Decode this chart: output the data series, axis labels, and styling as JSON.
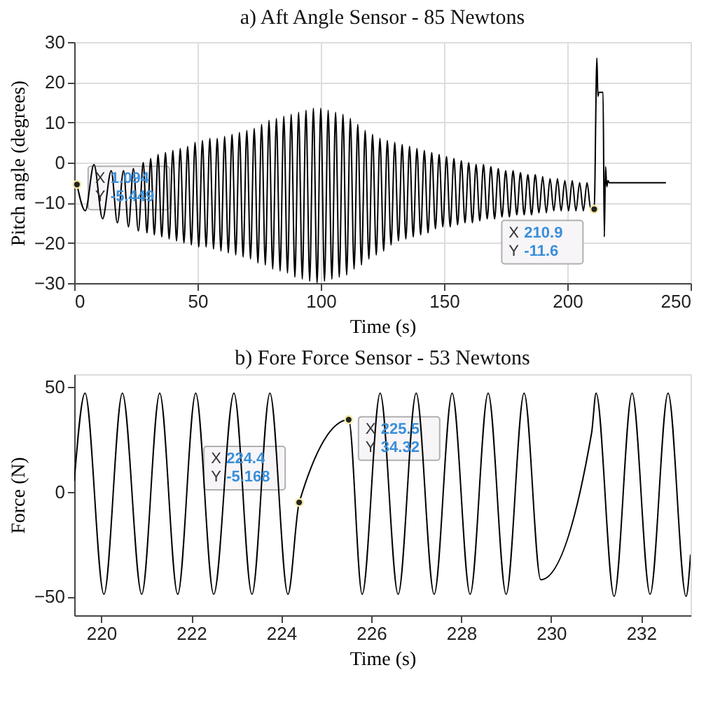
{
  "chart_data": [
    {
      "type": "line",
      "title": "a)  Aft Angle Sensor - 85 Newtons",
      "xlabel": "Time (s)",
      "ylabel": "Pitch angle (degrees)",
      "xlim": [
        0,
        250
      ],
      "ylim": [
        -30,
        30
      ],
      "xticks": [
        0,
        50,
        100,
        150,
        200,
        250
      ],
      "yticks": [
        -30,
        -20,
        -10,
        0,
        10,
        20,
        30
      ],
      "grid": true,
      "series": [
        {
          "color": "#000000",
          "x": [
            1.094,
            4.5,
            8,
            11.5,
            15,
            17.5,
            20,
            22,
            24,
            26,
            28,
            29.5,
            31,
            32.5,
            34,
            35.5,
            37,
            38.5,
            40,
            41.5,
            43,
            44.5,
            46,
            47.5,
            49,
            50.5,
            52,
            53.5,
            55,
            56.5,
            58,
            59.5,
            61,
            62.5,
            64,
            65.5,
            67,
            68.5,
            70,
            71.5,
            73,
            74.5,
            76,
            77.5,
            79,
            80.5,
            82,
            83.5,
            85,
            86.5,
            88,
            89.5,
            91,
            92.5,
            94,
            95.5,
            97,
            98.5,
            100,
            101.5,
            103,
            104.5,
            106,
            107.5,
            109,
            110.5,
            112,
            113.5,
            115,
            116.5,
            118,
            119.5,
            121,
            122.5,
            124,
            125.5,
            127,
            128.5,
            130,
            131.5,
            133,
            134.5,
            136,
            137.5,
            139,
            140.5,
            142,
            143.5,
            145,
            146.5,
            148,
            149.5,
            151,
            152.5,
            154,
            155.5,
            157,
            158.5,
            160,
            161.5,
            163,
            164.5,
            166,
            167.5,
            169,
            170.5,
            172,
            173.5,
            175,
            176.5,
            178,
            179.5,
            181,
            182.5,
            184,
            185.5,
            187,
            188.5,
            190,
            191.5,
            193,
            194.5,
            196,
            197.5,
            199,
            200.5,
            202,
            203.5,
            205,
            206.5,
            208,
            209.5,
            210.9,
            212,
            212.4,
            212.8,
            214.5,
            215,
            215.5,
            216,
            216.5,
            217,
            230,
            240
          ],
          "values": [
            -5.4,
            -12,
            -0.5,
            -14,
            -2,
            -15,
            -2,
            -16,
            -1.5,
            -17,
            0,
            -17.5,
            1,
            -18,
            2,
            -18.5,
            2.5,
            -19,
            3,
            -19.5,
            3.5,
            -20,
            4,
            -20.5,
            5,
            -21,
            5.5,
            -21,
            6,
            -21.5,
            6,
            -22,
            6.5,
            -22.5,
            7,
            -23,
            7.5,
            -23.5,
            8,
            -24,
            8.5,
            -25,
            9.5,
            -25.5,
            10.5,
            -26.5,
            11,
            -27,
            11.5,
            -27.5,
            12,
            -28.5,
            12.5,
            -29,
            13,
            -29.5,
            13.5,
            -30,
            13.5,
            -29.5,
            13,
            -29,
            12.5,
            -28.5,
            12,
            -28,
            11,
            -26.5,
            9.5,
            -25.5,
            8,
            -24,
            7,
            -23,
            6,
            -22,
            5.5,
            -20.5,
            5,
            -19.5,
            4.5,
            -19,
            4,
            -18.5,
            3.5,
            -18,
            3,
            -17.5,
            2.5,
            -16.5,
            2,
            -16,
            1.5,
            -16,
            1,
            -15.5,
            0.5,
            -15,
            0,
            -15,
            -0.5,
            -14.5,
            -0.5,
            -14,
            -1,
            -14,
            -1.5,
            -13.5,
            -2,
            -13.5,
            -2,
            -13,
            -2.5,
            -13,
            -3,
            -13,
            -3,
            -12.5,
            -3.5,
            -12.5,
            -4,
            -12,
            -4,
            -12,
            -4.5,
            -12,
            -4.5,
            -12,
            -5,
            -12,
            -5,
            -11.5,
            -11.6,
            26,
            16.5,
            17.5,
            17.5,
            -18.5,
            -1,
            -6,
            -4.5,
            -5,
            -5,
            -5
          ]
        }
      ],
      "annotations": [
        {
          "text": "X 1.094\nY -5.449",
          "x": 1.094,
          "y": -5.449
        },
        {
          "text": "X 210.9\nY -11.6",
          "x": 210.9,
          "y": -11.6
        }
      ]
    },
    {
      "type": "line",
      "title": "b)  Fore Force Sensor - 53 Newtons",
      "xlabel": "Time (s)",
      "ylabel": "Force (N)",
      "xlim": [
        219.4,
        233.1
      ],
      "ylim": [
        -59,
        56
      ],
      "xticks": [
        220,
        222,
        224,
        226,
        228,
        230,
        232
      ],
      "yticks": [
        -50,
        0,
        50
      ],
      "grid": false,
      "series": [
        {
          "color": "#000000",
          "x": [
            219.4,
            219.64,
            220.06,
            220.47,
            220.9,
            221.3,
            221.7,
            222.1,
            222.5,
            222.95,
            223.35,
            223.75,
            224.15,
            224.4,
            225.5,
            225.8,
            226.2,
            226.6,
            227.0,
            227.4,
            227.8,
            228.2,
            228.6,
            229.0,
            229.4,
            229.77,
            230.9,
            231.0,
            231.4,
            231.8,
            232.2,
            232.6,
            233.0,
            233.1
          ],
          "values": [
            5,
            47,
            -49,
            47,
            -49,
            47,
            -49,
            47,
            -49,
            47,
            -49,
            47,
            -49,
            -5.2,
            34.3,
            -49,
            47,
            -49,
            47,
            -49,
            47,
            -49,
            47,
            -49,
            47,
            -42,
            28,
            47,
            -50,
            47,
            -49,
            47,
            -50,
            -30
          ]
        }
      ],
      "annotations": [
        {
          "text": "X 224.4\nY -5.168",
          "x": 224.4,
          "y": -5.168
        },
        {
          "text": "X 225.5\nY 34.32",
          "x": 225.5,
          "y": 34.32
        }
      ]
    }
  ]
}
